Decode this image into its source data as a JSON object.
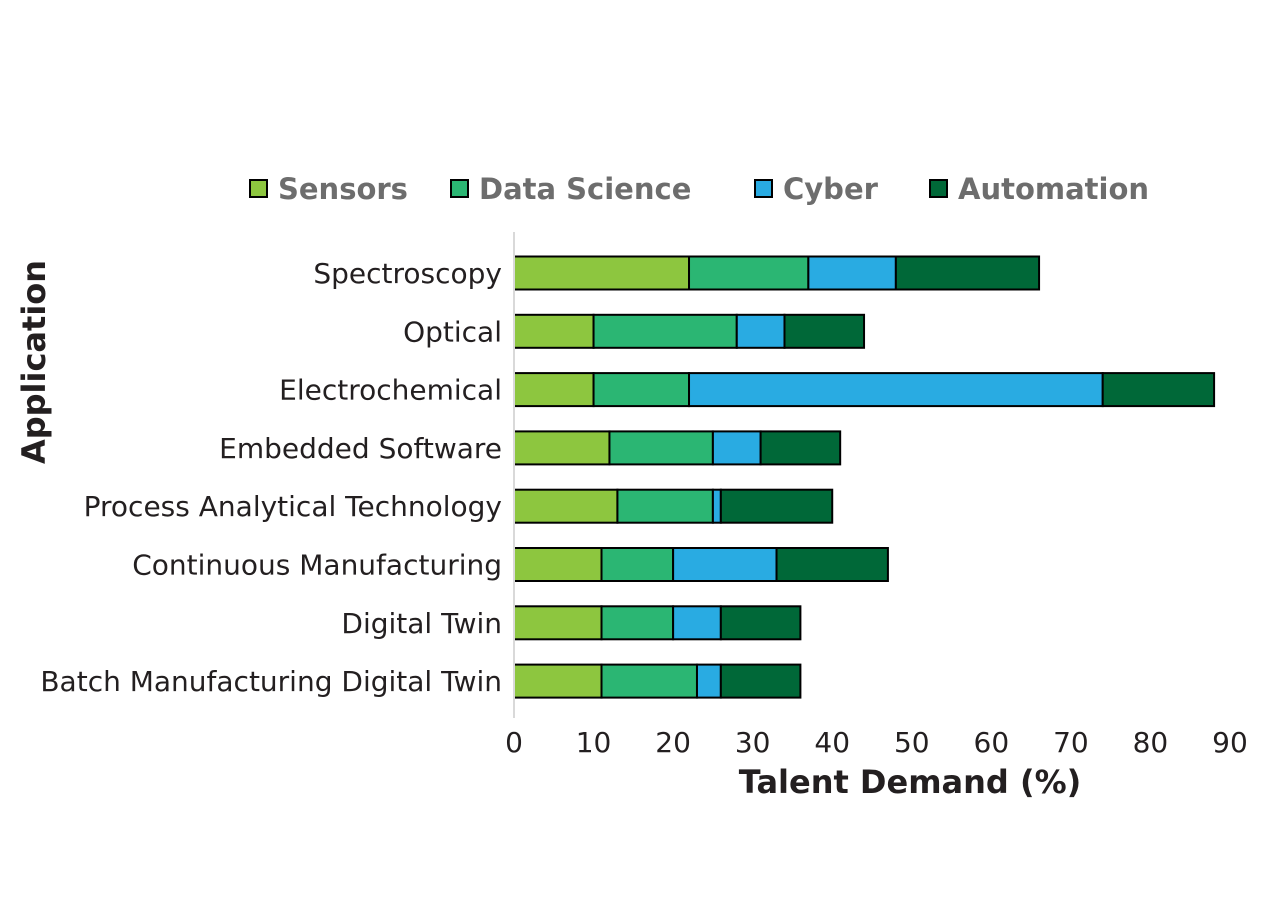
{
  "chart_data": {
    "type": "bar",
    "orientation": "horizontal",
    "stacked": true,
    "title": "",
    "xlabel": "Talent Demand (%)",
    "ylabel": "Application",
    "xlim": [
      0,
      90
    ],
    "xticks": [
      0,
      10,
      20,
      30,
      40,
      50,
      60,
      70,
      80,
      90
    ],
    "grid": false,
    "legend_position": "top",
    "categories": [
      "Spectroscopy",
      "Optical",
      "Electrochemical",
      "Embedded Software",
      "Process Analytical Technology",
      "Continuous Manufacturing",
      "Digital Twin",
      "Batch Manufacturing Digital Twin"
    ],
    "series": [
      {
        "name": "Sensors",
        "color": "#8dc63f",
        "values": [
          22,
          10,
          10,
          12,
          13,
          11,
          11,
          11
        ]
      },
      {
        "name": "Data Science",
        "color": "#2bb673",
        "values": [
          15,
          18,
          12,
          13,
          12,
          9,
          9,
          12
        ]
      },
      {
        "name": "Cyber",
        "color": "#29abe2",
        "values": [
          11,
          6,
          52,
          6,
          1,
          13,
          6,
          3
        ]
      },
      {
        "name": "Automation",
        "color": "#006838",
        "values": [
          18,
          10,
          14,
          10,
          14,
          14,
          10,
          10
        ]
      }
    ]
  }
}
